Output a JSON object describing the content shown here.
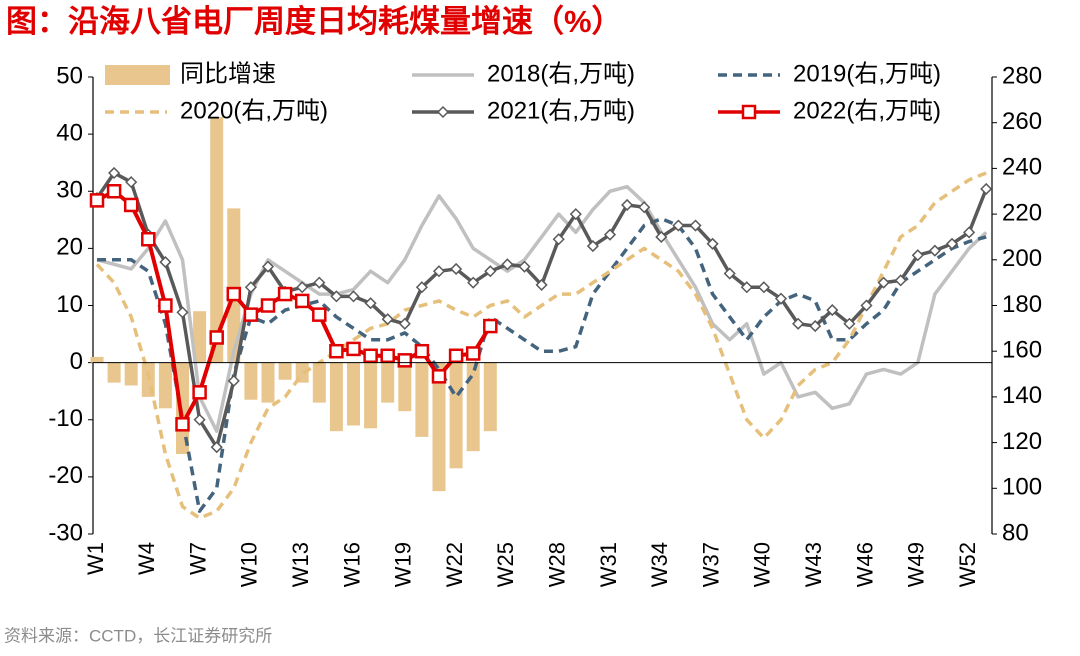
{
  "chart_data": {
    "type": "bar",
    "title": "图：沿海八省电厂周度日均耗煤量增速（%）",
    "source": "资料来源：CCTD，长江证券研究所",
    "categories": [
      "W1",
      null,
      null,
      "W4",
      null,
      null,
      "W7",
      null,
      null,
      "W10",
      null,
      null,
      "W13",
      null,
      null,
      "W16",
      null,
      null,
      "W19",
      null,
      null,
      "W22",
      null,
      null,
      "W25",
      null,
      null,
      "W28",
      null,
      null,
      "W31",
      null,
      null,
      "W34",
      null,
      null,
      "W37",
      null,
      null,
      "W40",
      null,
      null,
      "W43",
      null,
      null,
      "W46",
      null,
      null,
      "W49",
      null,
      null,
      "W52",
      null
    ],
    "ylim": [
      -30,
      50
    ],
    "yticks": [
      -30,
      -20,
      -10,
      0,
      10,
      20,
      30,
      40,
      50
    ],
    "y2lim": [
      80,
      280
    ],
    "y2ticks": [
      80,
      100,
      120,
      140,
      160,
      180,
      200,
      220,
      240,
      260,
      280
    ],
    "series": [
      {
        "name": "同比增速",
        "type": "bar",
        "color": "#e8c68e",
        "values": [
          1,
          -3.5,
          -4,
          -6,
          -8,
          -16,
          9,
          43,
          27,
          -6.5,
          -7,
          -3,
          -3.5,
          -7,
          -12,
          -11,
          -11.5,
          -7,
          -8.5,
          -13,
          -22.5,
          -18.5,
          -15.5,
          -12,
          null,
          null,
          null,
          null,
          null,
          null,
          null,
          null,
          null,
          null,
          null,
          null,
          null,
          null,
          null,
          null,
          null,
          null,
          null,
          null,
          null,
          null,
          null,
          null,
          null,
          null,
          null,
          null,
          null
        ]
      },
      {
        "name": "2018(右,万吨)",
        "type": "line",
        "axis": "y2",
        "color": "#c0c0c0",
        "dash": false,
        "marker": "none",
        "values": [
          200,
          198,
          196,
          205,
          217,
          200,
          140,
          125,
          160,
          185,
          200,
          195,
          190,
          185,
          185,
          187,
          195,
          190,
          200,
          215,
          228,
          218,
          205,
          200,
          195,
          200,
          210,
          220,
          212,
          222,
          230,
          232,
          225,
          212,
          200,
          188,
          172,
          165,
          172,
          150,
          155,
          140,
          142,
          135,
          137,
          150,
          152,
          150,
          155,
          185,
          195,
          205,
          212
        ]
      },
      {
        "name": "2019(右,万吨)",
        "type": "line",
        "axis": "y2",
        "color": "#44647e",
        "dash": true,
        "marker": "none",
        "values": [
          200,
          200,
          200,
          195,
          172,
          130,
          90,
          100,
          150,
          175,
          172,
          178,
          180,
          182,
          175,
          170,
          165,
          165,
          168,
          162,
          152,
          140,
          150,
          175,
          170,
          165,
          160,
          160,
          162,
          185,
          195,
          205,
          215,
          218,
          215,
          205,
          185,
          175,
          165,
          175,
          182,
          185,
          182,
          165,
          165,
          172,
          178,
          190,
          195,
          200,
          205,
          208,
          210
        ]
      },
      {
        "name": "2020(右,万吨)",
        "type": "line",
        "axis": "y2",
        "color": "#e6c07b",
        "dash": true,
        "marker": "none",
        "values": [
          198,
          190,
          175,
          150,
          115,
          92,
          87,
          90,
          100,
          120,
          135,
          140,
          150,
          155,
          160,
          165,
          170,
          172,
          178,
          180,
          182,
          178,
          175,
          180,
          182,
          175,
          180,
          185,
          185,
          190,
          195,
          200,
          205,
          200,
          195,
          185,
          170,
          150,
          130,
          122,
          130,
          145,
          152,
          155,
          165,
          180,
          195,
          210,
          215,
          225,
          230,
          235,
          238
        ]
      },
      {
        "name": "2021(右,万吨)",
        "type": "line",
        "axis": "y2",
        "color": "#595959",
        "dash": false,
        "marker": "diamond",
        "values": [
          227,
          238,
          234,
          211,
          199,
          177,
          130,
          118,
          147,
          188,
          197,
          186,
          188,
          190,
          184,
          184,
          181,
          174,
          172,
          188,
          195,
          196,
          190,
          195,
          198,
          197,
          189,
          209,
          220,
          206,
          211,
          224,
          223,
          210,
          215,
          215,
          207,
          194,
          188,
          188,
          183,
          172,
          171,
          178,
          172,
          180,
          190,
          191,
          202,
          204,
          207,
          212,
          231
        ]
      },
      {
        "name": "2022(右,万吨)",
        "type": "line",
        "axis": "y2",
        "color": "#e00000",
        "dash": false,
        "marker": "square",
        "values": [
          226,
          230,
          224,
          209,
          180,
          128,
          142,
          166,
          185,
          176,
          180,
          185,
          182,
          176,
          160,
          161,
          158,
          158,
          156,
          160,
          149,
          158,
          159,
          171,
          null,
          null,
          null,
          null,
          null,
          null,
          null,
          null,
          null,
          null,
          null,
          null,
          null,
          null,
          null,
          null,
          null,
          null,
          null,
          null,
          null,
          null,
          null,
          null,
          null,
          null,
          null,
          null,
          null
        ]
      }
    ]
  }
}
